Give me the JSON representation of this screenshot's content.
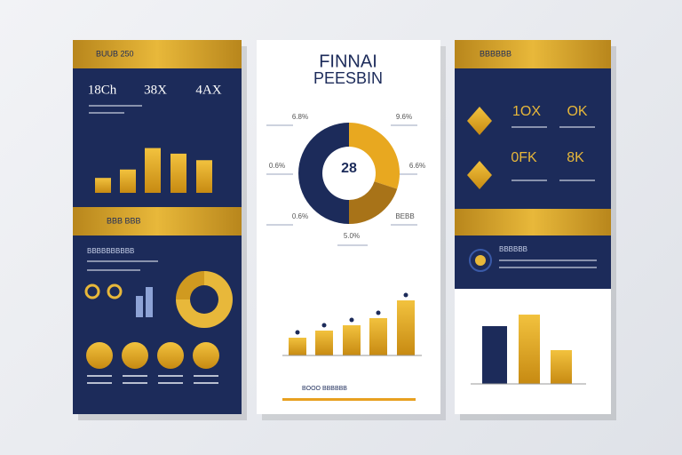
{
  "left": {
    "header": "BUUB 250",
    "stats": [
      "18Ch",
      "38X",
      "4AX"
    ],
    "bars": [
      16,
      25,
      48,
      42,
      35
    ],
    "section": "BBB BBB",
    "subtitle": "BBBBBBBBBB",
    "donut": [
      75,
      25
    ],
    "small_bars": [
      24,
      34
    ]
  },
  "middle": {
    "title": "FINNAI",
    "subtitle": "PEESBIN",
    "donut_center": "28",
    "donut": [
      50,
      30,
      20
    ],
    "labels": [
      "6.8%",
      "9.6%",
      "0.6%",
      "6.6%",
      "0.6%",
      "BEBB",
      "5.0%"
    ],
    "bars": [
      20,
      28,
      34,
      42,
      62
    ],
    "footer": "BOOO BBBBBB"
  },
  "right": {
    "header": "BBBBBB",
    "stats": [
      "1OX",
      "OK",
      "0FK",
      "8K"
    ],
    "section": "BBBBBB",
    "bars": [
      65,
      78,
      38
    ]
  }
}
